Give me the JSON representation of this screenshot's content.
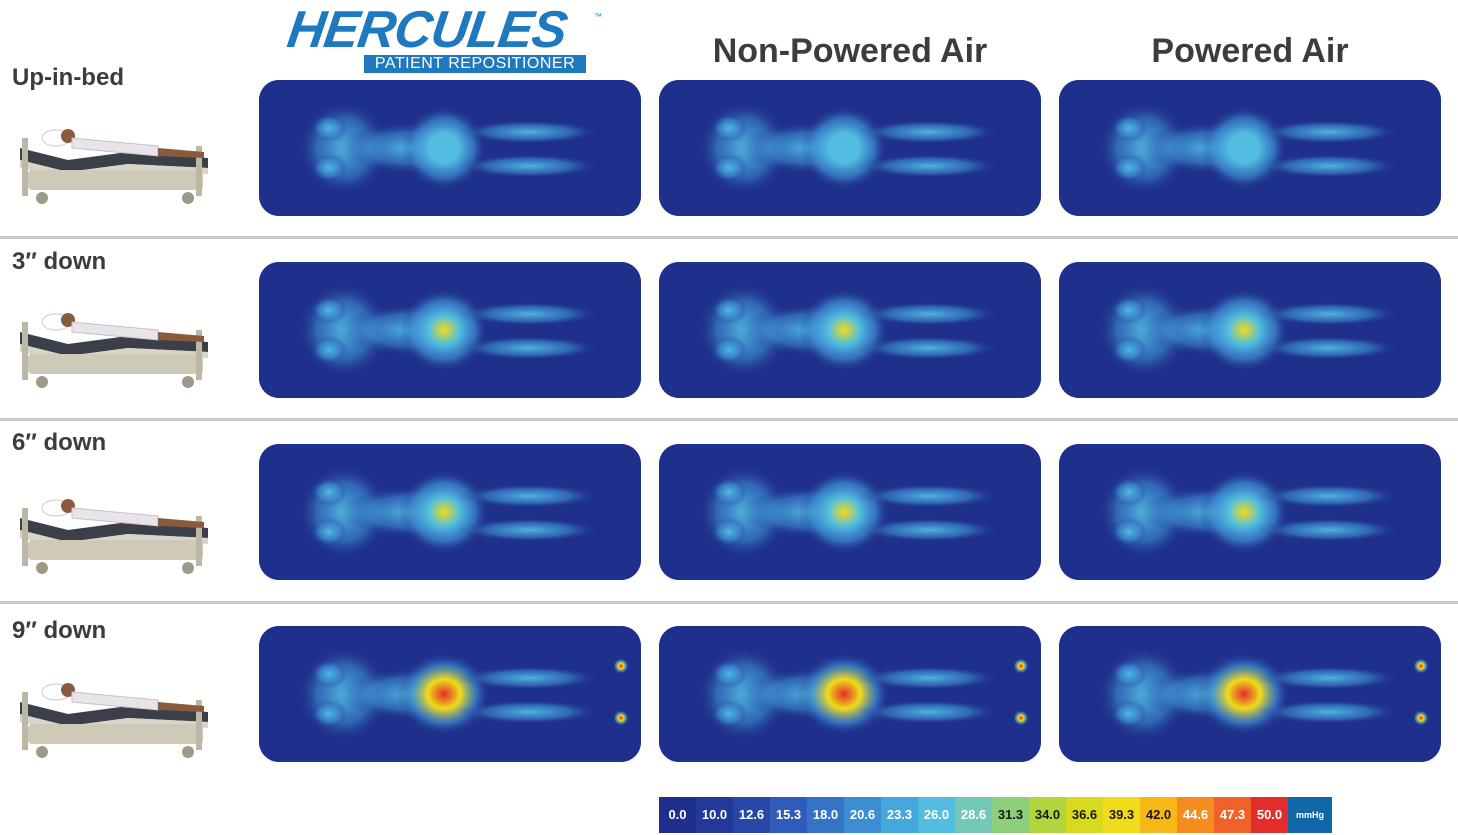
{
  "logo": {
    "name": "HERCULES",
    "tm": "™",
    "subtitle": "PATIENT REPOSITIONER"
  },
  "columns": [
    "",
    "Non-Powered Air",
    "Powered Air"
  ],
  "rows": [
    {
      "label": "Up-in-bed",
      "intensity": [
        0.35,
        0.5,
        0.45
      ]
    },
    {
      "label": "3″ down",
      "intensity": [
        0.6,
        0.65,
        0.7
      ]
    },
    {
      "label": "6″ down",
      "intensity": [
        0.65,
        0.75,
        0.7
      ]
    },
    {
      "label": "9″ down",
      "intensity": [
        0.9,
        0.92,
        0.92
      ]
    }
  ],
  "legend": {
    "values": [
      "0.0",
      "10.0",
      "12.6",
      "15.3",
      "18.0",
      "20.6",
      "23.3",
      "26.0",
      "28.6",
      "31.3",
      "34.0",
      "36.6",
      "39.3",
      "42.0",
      "44.6",
      "47.3",
      "50.0"
    ],
    "colors": [
      "#1f2f8c",
      "#23399a",
      "#2848a8",
      "#2f5cb8",
      "#3573c6",
      "#3c8dd2",
      "#44a8dc",
      "#52bde0",
      "#73c9b6",
      "#8ecf7c",
      "#b2d53d",
      "#d8da1e",
      "#f0dc1a",
      "#f7b817",
      "#f58d1e",
      "#f1622a",
      "#e22d2b"
    ],
    "unit": "mmHg"
  },
  "palette": {
    "background": "#1f2f8c",
    "low": "#3c8dd2",
    "mid": "#52bde0",
    "warm": "#f0dc1a",
    "hot": "#e22d2b"
  }
}
